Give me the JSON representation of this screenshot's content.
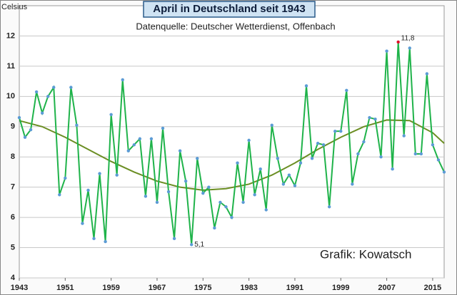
{
  "chart_data": {
    "type": "line",
    "title": "April in Deutschland seit 1943",
    "subtitle": "Datenquelle: Deutscher Wetterdienst, Offenbach",
    "annotation": "Grafik: Kowatsch",
    "y_label": "Celsius",
    "x": [
      1943,
      1944,
      1945,
      1946,
      1947,
      1948,
      1949,
      1950,
      1951,
      1952,
      1953,
      1954,
      1955,
      1956,
      1957,
      1958,
      1959,
      1960,
      1961,
      1962,
      1963,
      1964,
      1965,
      1966,
      1967,
      1968,
      1969,
      1970,
      1971,
      1972,
      1973,
      1974,
      1975,
      1976,
      1977,
      1978,
      1979,
      1980,
      1981,
      1982,
      1983,
      1984,
      1985,
      1986,
      1987,
      1988,
      1989,
      1990,
      1991,
      1992,
      1993,
      1994,
      1995,
      1996,
      1997,
      1998,
      1999,
      2000,
      2001,
      2002,
      2003,
      2004,
      2005,
      2006,
      2007,
      2008,
      2009,
      2010,
      2011,
      2012,
      2013,
      2014,
      2015,
      2016,
      2017
    ],
    "series": [
      {
        "color": "#1fb34a",
        "marker_color": "#5b9bd5",
        "highlight_color": "#e0102a",
        "values": [
          9.3,
          8.65,
          8.9,
          10.15,
          9.45,
          10.0,
          10.3,
          6.75,
          7.3,
          10.3,
          9.05,
          5.8,
          6.9,
          5.3,
          7.45,
          5.2,
          9.4,
          7.4,
          10.55,
          8.2,
          8.4,
          8.6,
          6.7,
          8.6,
          6.5,
          8.95,
          6.85,
          5.3,
          8.2,
          7.2,
          5.1,
          7.95,
          6.8,
          7.0,
          5.65,
          6.5,
          6.35,
          6.0,
          7.8,
          6.5,
          8.55,
          6.75,
          7.6,
          6.25,
          9.05,
          7.95,
          7.1,
          7.4,
          7.05,
          7.8,
          10.35,
          7.95,
          8.45,
          8.4,
          6.35,
          8.85,
          8.85,
          10.2,
          7.1,
          8.1,
          8.5,
          9.3,
          9.25,
          8.0,
          11.5,
          7.6,
          11.8,
          8.7,
          11.6,
          8.1,
          8.1,
          10.75,
          8.4,
          7.9,
          7.5
        ],
        "value_labels": [
          null,
          null,
          null,
          null,
          null,
          null,
          null,
          null,
          null,
          null,
          null,
          null,
          null,
          null,
          null,
          null,
          null,
          null,
          null,
          null,
          null,
          null,
          null,
          null,
          null,
          null,
          null,
          null,
          null,
          null,
          "5,1",
          null,
          null,
          null,
          null,
          null,
          null,
          null,
          null,
          null,
          null,
          null,
          null,
          null,
          null,
          null,
          null,
          null,
          null,
          null,
          null,
          null,
          null,
          null,
          null,
          null,
          null,
          null,
          null,
          null,
          null,
          null,
          null,
          null,
          null,
          null,
          "11,8",
          null,
          null,
          null,
          null,
          null,
          null,
          null,
          null
        ]
      }
    ],
    "trend": {
      "color": "#6b8e23",
      "x": [
        1943,
        1947,
        1951,
        1955,
        1959,
        1963,
        1967,
        1971,
        1975,
        1979,
        1983,
        1987,
        1991,
        1995,
        1999,
        2003,
        2007,
        2011,
        2015,
        2017
      ],
      "values": [
        9.2,
        9.0,
        8.65,
        8.25,
        7.85,
        7.5,
        7.2,
        7.0,
        6.9,
        6.95,
        7.1,
        7.4,
        7.8,
        8.25,
        8.65,
        9.0,
        9.22,
        9.2,
        8.8,
        8.45
      ]
    },
    "xlim": [
      1943,
      2017
    ],
    "xticks": [
      1943,
      1951,
      1959,
      1967,
      1975,
      1983,
      1991,
      1999,
      2007,
      2015
    ],
    "ylim": [
      4,
      13
    ],
    "yticks": [
      4,
      5,
      6,
      7,
      8,
      9,
      10,
      11,
      12
    ],
    "grid": true
  }
}
